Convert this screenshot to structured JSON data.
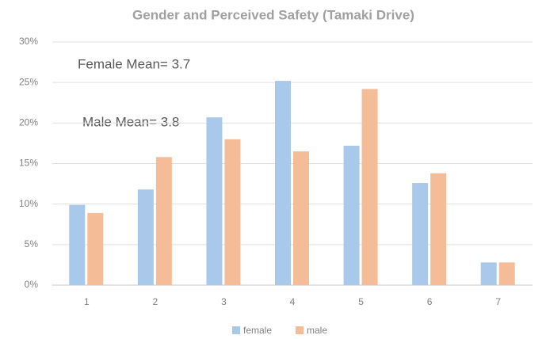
{
  "chart_data": {
    "type": "bar",
    "title": "Gender and Perceived Safety (Tamaki Drive)",
    "annotations": [
      "Female Mean= 3.7",
      "Male Mean= 3.8"
    ],
    "categories": [
      "1",
      "2",
      "3",
      "4",
      "5",
      "6",
      "7"
    ],
    "series": [
      {
        "name": "female",
        "color": "#a9c9ea",
        "values": [
          9.9,
          11.8,
          20.7,
          25.2,
          17.2,
          12.6,
          2.8
        ]
      },
      {
        "name": "male",
        "color": "#f5bc98",
        "values": [
          8.9,
          15.8,
          18.0,
          16.5,
          24.2,
          13.8,
          2.8
        ]
      }
    ],
    "ylim": [
      0,
      30
    ],
    "yticks": [
      {
        "value": 0,
        "label": "0%"
      },
      {
        "value": 5,
        "label": "5%"
      },
      {
        "value": 10,
        "label": "10%"
      },
      {
        "value": 15,
        "label": "15%"
      },
      {
        "value": 20,
        "label": "20%"
      },
      {
        "value": 25,
        "label": "25%"
      },
      {
        "value": 30,
        "label": "30%"
      }
    ],
    "grid": true,
    "legend": "bottom"
  }
}
